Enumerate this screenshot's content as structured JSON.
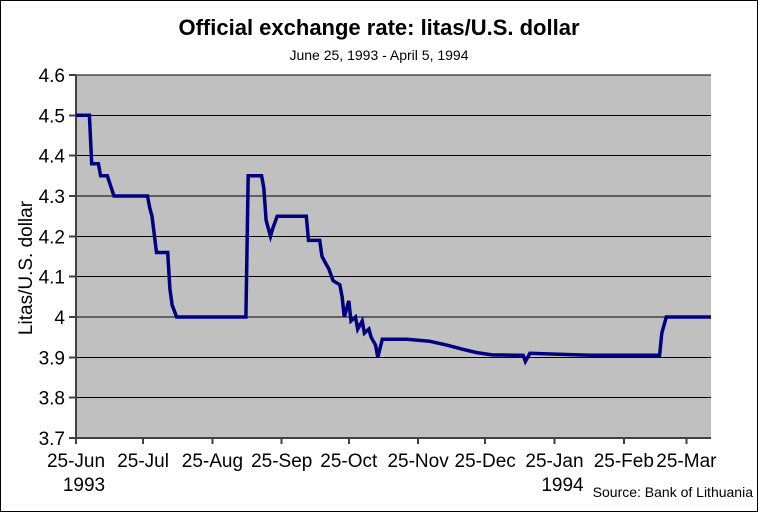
{
  "style": {
    "page_bg": "#ffffff",
    "plot_bg": "#c0c0c0",
    "grid_color": "#000000",
    "axis_color": "#404040",
    "line_color": "#000080",
    "text_color": "#000000"
  },
  "chart_data": {
    "type": "line",
    "title": "Official exchange rate: litas/U.S. dollar",
    "subtitle": "June 25, 1993 - April 5, 1994",
    "xlabel": "",
    "ylabel": "Litas/U.S. dollar",
    "source": "Source: Bank of Lithuania",
    "ylim": [
      3.7,
      4.6
    ],
    "grid": "horizontal-only",
    "legend": "none",
    "plot_background": "silver",
    "y_ticks": [
      {
        "value": 4.6,
        "label": "4.6"
      },
      {
        "value": 4.5,
        "label": "4.5"
      },
      {
        "value": 4.4,
        "label": "4.4"
      },
      {
        "value": 4.3,
        "label": "4.3"
      },
      {
        "value": 4.2,
        "label": "4.2"
      },
      {
        "value": 4.1,
        "label": "4.1"
      },
      {
        "value": 4.0,
        "label": "4"
      },
      {
        "value": 3.9,
        "label": "3.9"
      },
      {
        "value": 3.8,
        "label": "3.8"
      },
      {
        "value": 3.7,
        "label": "3.7"
      }
    ],
    "x_range": [
      "1993-06-25",
      "1994-04-05"
    ],
    "x_ticks": [
      {
        "date": "1993-06-25",
        "label": "25-Jun",
        "year": "1993"
      },
      {
        "date": "1993-07-25",
        "label": "25-Jul"
      },
      {
        "date": "1993-08-25",
        "label": "25-Aug"
      },
      {
        "date": "1993-09-25",
        "label": "25-Sep"
      },
      {
        "date": "1993-10-25",
        "label": "25-Oct"
      },
      {
        "date": "1993-11-25",
        "label": "25-Nov"
      },
      {
        "date": "1993-12-25",
        "label": "25-Dec"
      },
      {
        "date": "1994-01-25",
        "label": "25-Jan",
        "year": "1994"
      },
      {
        "date": "1994-02-25",
        "label": "25-Feb"
      },
      {
        "date": "1994-03-25",
        "label": "25-Mar"
      }
    ],
    "series": [
      {
        "name": "Official exchange rate (litas per U.S. dollar)",
        "points": [
          [
            "1993-06-25",
            4.5
          ],
          [
            "1993-07-01",
            4.5
          ],
          [
            "1993-07-02",
            4.38
          ],
          [
            "1993-07-05",
            4.38
          ],
          [
            "1993-07-06",
            4.35
          ],
          [
            "1993-07-09",
            4.35
          ],
          [
            "1993-07-12",
            4.3
          ],
          [
            "1993-07-27",
            4.3
          ],
          [
            "1993-07-28",
            4.27
          ],
          [
            "1993-07-29",
            4.25
          ],
          [
            "1993-07-31",
            4.16
          ],
          [
            "1993-08-05",
            4.16
          ],
          [
            "1993-08-06",
            4.07
          ],
          [
            "1993-08-07",
            4.03
          ],
          [
            "1993-08-09",
            4.0
          ],
          [
            "1993-09-09",
            4.0
          ],
          [
            "1993-09-10",
            4.35
          ],
          [
            "1993-09-16",
            4.35
          ],
          [
            "1993-09-17",
            4.32
          ],
          [
            "1993-09-18",
            4.24
          ],
          [
            "1993-09-20",
            4.2
          ],
          [
            "1993-09-21",
            4.22
          ],
          [
            "1993-09-23",
            4.25
          ],
          [
            "1993-10-06",
            4.25
          ],
          [
            "1993-10-07",
            4.19
          ],
          [
            "1993-10-12",
            4.19
          ],
          [
            "1993-10-13",
            4.15
          ],
          [
            "1993-10-15",
            4.13
          ],
          [
            "1993-10-16",
            4.12
          ],
          [
            "1993-10-18",
            4.09
          ],
          [
            "1993-10-21",
            4.08
          ],
          [
            "1993-10-22",
            4.05
          ],
          [
            "1993-10-23",
            4.0
          ],
          [
            "1993-10-25",
            4.04
          ],
          [
            "1993-10-26",
            3.99
          ],
          [
            "1993-10-28",
            4.0
          ],
          [
            "1993-10-29",
            3.97
          ],
          [
            "1993-10-31",
            3.99
          ],
          [
            "1993-11-01",
            3.96
          ],
          [
            "1993-11-03",
            3.97
          ],
          [
            "1993-11-04",
            3.95
          ],
          [
            "1993-11-06",
            3.93
          ],
          [
            "1993-11-07",
            3.9
          ],
          [
            "1993-11-09",
            3.945
          ],
          [
            "1993-11-20",
            3.945
          ],
          [
            "1993-11-30",
            3.94
          ],
          [
            "1993-12-08",
            3.93
          ],
          [
            "1993-12-15",
            3.92
          ],
          [
            "1993-12-21",
            3.912
          ],
          [
            "1993-12-28",
            3.906
          ],
          [
            "1994-01-11",
            3.905
          ],
          [
            "1994-01-12",
            3.89
          ],
          [
            "1994-01-14",
            3.91
          ],
          [
            "1994-01-25",
            3.908
          ],
          [
            "1994-02-10",
            3.905
          ],
          [
            "1994-03-01",
            3.905
          ],
          [
            "1994-03-13",
            3.905
          ],
          [
            "1994-03-14",
            3.96
          ],
          [
            "1994-03-16",
            4.0
          ],
          [
            "1994-04-01",
            4.0
          ],
          [
            "1994-04-05",
            4.0
          ]
        ]
      }
    ]
  }
}
